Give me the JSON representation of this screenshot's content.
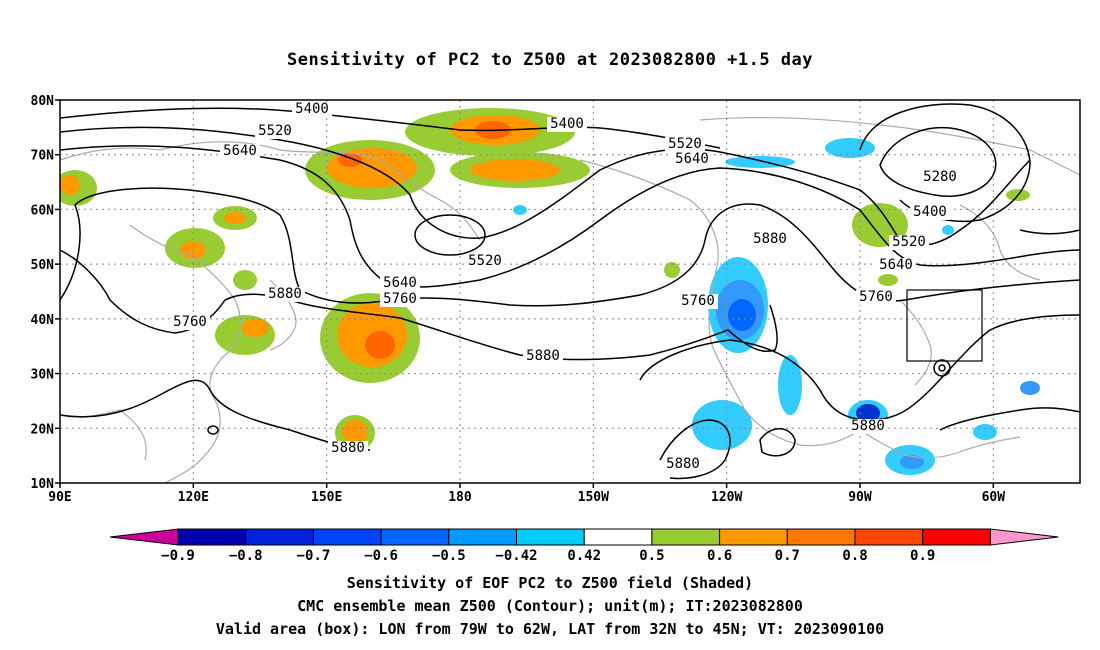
{
  "title": "Sensitivity of PC2 to Z500 at 2023082800 +1.5 day",
  "map": {
    "lat_ticks": [
      "10N",
      "20N",
      "30N",
      "40N",
      "50N",
      "60N",
      "70N",
      "80N"
    ],
    "lon_ticks": [
      "90E",
      "120E",
      "150E",
      "180",
      "150W",
      "120W",
      "90W",
      "60W"
    ],
    "valid_box": {
      "lon_min": -79,
      "lon_max": -62,
      "lat_min": 32,
      "lat_max": 45
    },
    "contour_labels": [
      "5400",
      "5400",
      "5520",
      "5640",
      "5520",
      "5640",
      "5760",
      "5880",
      "5640",
      "5760",
      "5760",
      "5880",
      "5880",
      "5880",
      "5520",
      "5640",
      "5760",
      "5880",
      "5880",
      "5280",
      "5400",
      "5520",
      "5640",
      "5760",
      "5880"
    ],
    "colors": {
      "ocean_grid": "#999999",
      "coast": "#aaaaaa",
      "contour": "#000000",
      "pos_light": "#99cc33",
      "pos_mid": "#ff9900",
      "pos_high": "#ff6600",
      "pos_max": "#ff3300",
      "neg_light": "#33ccff",
      "neg_mid": "#3399ff",
      "neg_high": "#0066ff",
      "neg_max": "#0033cc"
    }
  },
  "colorbar": {
    "labels": [
      "-0.9",
      "-0.8",
      "-0.7",
      "-0.6",
      "-0.5",
      "-0.42",
      "0.42",
      "0.5",
      "0.6",
      "0.7",
      "0.8",
      "0.9"
    ],
    "colors": [
      "#0000aa",
      "#0022dd",
      "#0044ff",
      "#0066ff",
      "#0099ff",
      "#00ccff",
      "#ffffff",
      "#99cc33",
      "#ff9900",
      "#ff7700",
      "#ff4400",
      "#ff0000"
    ],
    "min_color": "#cc0099",
    "max_color": "#ff99cc"
  },
  "caption": {
    "line1": "Sensitivity of EOF PC2 to Z500 field (Shaded)",
    "line2": "CMC ensemble mean Z500 (Contour); unit(m); IT:2023082800",
    "line3": "Valid area (box): LON from 79W to 62W, LAT from 32N to 45N; VT: 2023090100"
  }
}
